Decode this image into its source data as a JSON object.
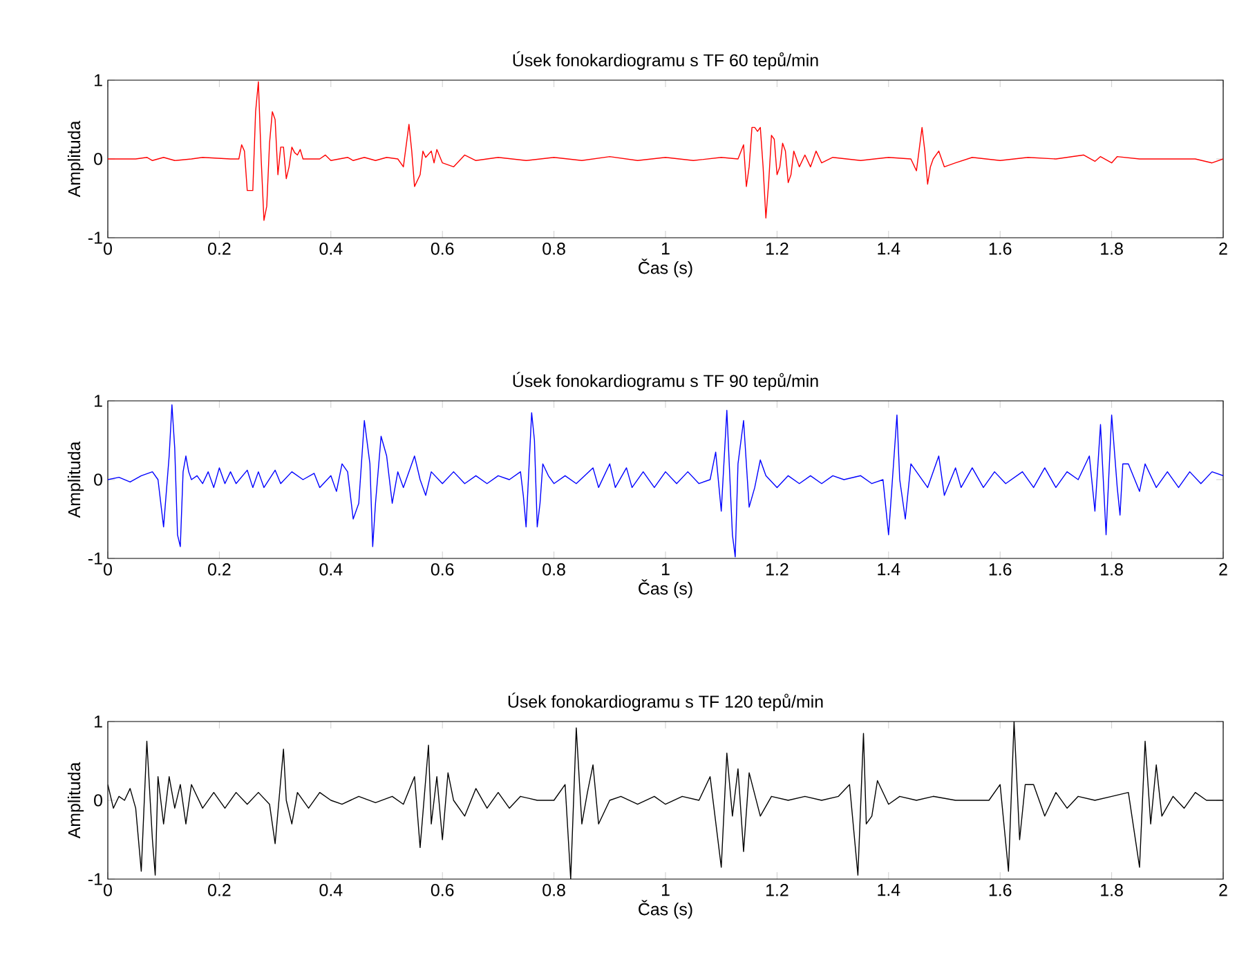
{
  "chart_data": [
    {
      "type": "line",
      "title": "Úsek fonokardiogramu s TF 60 tepů/min",
      "xlabel": "Čas (s)",
      "ylabel": "Amplituda",
      "xlim": [
        0,
        2
      ],
      "ylim": [
        -1,
        1
      ],
      "xticks": [
        0,
        0.2,
        0.4,
        0.6,
        0.8,
        1,
        1.2,
        1.4,
        1.6,
        1.8,
        2
      ],
      "yticks": [
        -1,
        0,
        1
      ],
      "x": [
        0,
        0.05,
        0.07,
        0.08,
        0.1,
        0.12,
        0.15,
        0.17,
        0.22,
        0.235,
        0.24,
        0.245,
        0.25,
        0.26,
        0.265,
        0.27,
        0.275,
        0.28,
        0.285,
        0.29,
        0.295,
        0.3,
        0.305,
        0.31,
        0.315,
        0.32,
        0.325,
        0.33,
        0.335,
        0.34,
        0.345,
        0.35,
        0.38,
        0.39,
        0.4,
        0.43,
        0.44,
        0.46,
        0.48,
        0.5,
        0.52,
        0.53,
        0.54,
        0.545,
        0.55,
        0.56,
        0.565,
        0.57,
        0.58,
        0.585,
        0.59,
        0.6,
        0.62,
        0.64,
        0.66,
        0.7,
        0.75,
        0.8,
        0.85,
        0.9,
        0.95,
        1,
        1.05,
        1.1,
        1.13,
        1.14,
        1.145,
        1.15,
        1.155,
        1.16,
        1.165,
        1.17,
        1.175,
        1.18,
        1.185,
        1.19,
        1.195,
        1.2,
        1.205,
        1.21,
        1.215,
        1.22,
        1.225,
        1.23,
        1.24,
        1.25,
        1.26,
        1.27,
        1.28,
        1.3,
        1.35,
        1.4,
        1.44,
        1.45,
        1.46,
        1.465,
        1.47,
        1.475,
        1.48,
        1.49,
        1.5,
        1.52,
        1.55,
        1.6,
        1.65,
        1.7,
        1.75,
        1.77,
        1.78,
        1.8,
        1.81,
        1.85,
        1.95,
        1.98,
        2
      ],
      "series": [
        {
          "color": "#ff0000",
          "values": [
            0,
            0,
            0.02,
            -0.02,
            0.02,
            -0.02,
            0,
            0.02,
            0,
            0,
            0.18,
            0.1,
            -0.4,
            -0.4,
            0.6,
            0.98,
            0,
            -0.78,
            -0.6,
            0.2,
            0.6,
            0.5,
            -0.2,
            0.15,
            0.15,
            -0.25,
            -0.1,
            0.15,
            0.08,
            0.05,
            0.12,
            0,
            0,
            0.05,
            -0.02,
            0.02,
            -0.02,
            0.02,
            -0.02,
            0.02,
            0,
            -0.1,
            0.44,
            0.1,
            -0.35,
            -0.2,
            0.1,
            0.02,
            0.1,
            -0.05,
            0.12,
            -0.05,
            -0.1,
            0.05,
            -0.02,
            0.02,
            -0.02,
            0.02,
            -0.02,
            0.03,
            -0.02,
            0.02,
            -0.02,
            0.02,
            0,
            0.18,
            -0.35,
            -0.1,
            0.4,
            0.4,
            0.35,
            0.4,
            -0.1,
            -0.75,
            -0.3,
            0.3,
            0.25,
            -0.2,
            -0.1,
            0.2,
            0.1,
            -0.3,
            -0.2,
            0.1,
            -0.1,
            0.05,
            -0.1,
            0.1,
            -0.05,
            0.02,
            -0.02,
            0.02,
            0,
            -0.15,
            0.4,
            0.1,
            -0.32,
            -0.1,
            0,
            0.1,
            -0.1,
            -0.05,
            0.02,
            -0.02,
            0.02,
            0,
            0.05,
            -0.03,
            0.03,
            -0.05,
            0.03,
            0,
            0,
            -0.05,
            0
          ]
        }
      ]
    },
    {
      "type": "line",
      "title": "Úsek fonokardiogramu s TF 90 tepů/min",
      "xlabel": "Čas (s)",
      "ylabel": "Amplituda",
      "xlim": [
        0,
        2
      ],
      "ylim": [
        -1,
        1
      ],
      "xticks": [
        0,
        0.2,
        0.4,
        0.6,
        0.8,
        1,
        1.2,
        1.4,
        1.6,
        1.8,
        2
      ],
      "yticks": [
        -1,
        0,
        1
      ],
      "x": [
        0,
        0.02,
        0.04,
        0.06,
        0.08,
        0.09,
        0.1,
        0.11,
        0.115,
        0.12,
        0.125,
        0.13,
        0.135,
        0.14,
        0.145,
        0.15,
        0.16,
        0.17,
        0.18,
        0.19,
        0.2,
        0.21,
        0.22,
        0.23,
        0.25,
        0.26,
        0.27,
        0.28,
        0.3,
        0.31,
        0.33,
        0.35,
        0.37,
        0.38,
        0.4,
        0.41,
        0.42,
        0.43,
        0.44,
        0.45,
        0.46,
        0.47,
        0.475,
        0.48,
        0.49,
        0.5,
        0.51,
        0.52,
        0.53,
        0.55,
        0.56,
        0.57,
        0.58,
        0.6,
        0.62,
        0.64,
        0.66,
        0.68,
        0.7,
        0.72,
        0.74,
        0.745,
        0.75,
        0.76,
        0.765,
        0.77,
        0.775,
        0.78,
        0.79,
        0.8,
        0.82,
        0.84,
        0.87,
        0.88,
        0.9,
        0.91,
        0.93,
        0.94,
        0.96,
        0.98,
        1,
        1.02,
        1.04,
        1.06,
        1.08,
        1.09,
        1.1,
        1.11,
        1.12,
        1.125,
        1.13,
        1.14,
        1.15,
        1.16,
        1.17,
        1.18,
        1.2,
        1.22,
        1.24,
        1.26,
        1.28,
        1.3,
        1.32,
        1.35,
        1.37,
        1.39,
        1.4,
        1.415,
        1.42,
        1.43,
        1.44,
        1.45,
        1.47,
        1.49,
        1.5,
        1.52,
        1.53,
        1.55,
        1.57,
        1.59,
        1.61,
        1.64,
        1.66,
        1.68,
        1.7,
        1.72,
        1.74,
        1.76,
        1.77,
        1.78,
        1.79,
        1.8,
        1.81,
        1.815,
        1.82,
        1.83,
        1.85,
        1.86,
        1.88,
        1.9,
        1.92,
        1.94,
        1.96,
        1.98,
        2
      ],
      "series": [
        {
          "color": "#0000ff",
          "values": [
            0,
            0.03,
            -0.03,
            0.05,
            0.1,
            0,
            -0.6,
            0.3,
            0.95,
            0.4,
            -0.7,
            -0.85,
            0.1,
            0.3,
            0.1,
            0,
            0.05,
            -0.05,
            0.1,
            -0.1,
            0.15,
            -0.05,
            0.1,
            -0.05,
            0.12,
            -0.1,
            0.1,
            -0.1,
            0.12,
            -0.05,
            0.1,
            0,
            0.08,
            -0.1,
            0.05,
            -0.15,
            0.2,
            0.1,
            -0.5,
            -0.3,
            0.75,
            0.2,
            -0.85,
            -0.3,
            0.55,
            0.3,
            -0.3,
            0.1,
            -0.1,
            0.3,
            0,
            -0.2,
            0.1,
            -0.05,
            0.1,
            -0.05,
            0.05,
            -0.05,
            0.05,
            0,
            0.1,
            -0.2,
            -0.6,
            0.85,
            0.5,
            -0.6,
            -0.3,
            0.2,
            0.05,
            -0.05,
            0.05,
            -0.05,
            0.15,
            -0.1,
            0.2,
            -0.1,
            0.15,
            -0.1,
            0.1,
            -0.1,
            0.1,
            -0.05,
            0.1,
            -0.05,
            0,
            0.35,
            -0.4,
            0.88,
            -0.7,
            -0.98,
            0.2,
            0.75,
            -0.35,
            -0.1,
            0.25,
            0.05,
            -0.1,
            0.05,
            -0.05,
            0.05,
            -0.05,
            0.05,
            0,
            0.05,
            -0.05,
            0,
            -0.7,
            0.82,
            0,
            -0.5,
            0.2,
            0.1,
            -0.1,
            0.3,
            -0.2,
            0.15,
            -0.1,
            0.15,
            -0.1,
            0.1,
            -0.05,
            0.1,
            -0.1,
            0.15,
            -0.1,
            0.1,
            0,
            0.3,
            -0.4,
            0.7,
            -0.7,
            0.82,
            -0.1,
            -0.45,
            0.2,
            0.2,
            -0.15,
            0.2,
            -0.1,
            0.1,
            -0.1,
            0.1,
            -0.05,
            0.1,
            0.05
          ]
        }
      ]
    },
    {
      "type": "line",
      "title": "Úsek fonokardiogramu s TF 120 tepů/min",
      "xlabel": "Čas (s)",
      "ylabel": "Amplituda",
      "xlim": [
        0,
        2
      ],
      "ylim": [
        -1,
        1
      ],
      "xticks": [
        0,
        0.2,
        0.4,
        0.6,
        0.8,
        1,
        1.2,
        1.4,
        1.6,
        1.8,
        2
      ],
      "yticks": [
        -1,
        0,
        1
      ],
      "x": [
        0,
        0.01,
        0.02,
        0.03,
        0.04,
        0.05,
        0.06,
        0.07,
        0.08,
        0.085,
        0.09,
        0.1,
        0.11,
        0.12,
        0.13,
        0.14,
        0.15,
        0.17,
        0.19,
        0.21,
        0.23,
        0.25,
        0.27,
        0.29,
        0.3,
        0.315,
        0.32,
        0.33,
        0.34,
        0.36,
        0.38,
        0.4,
        0.42,
        0.45,
        0.48,
        0.51,
        0.53,
        0.55,
        0.56,
        0.575,
        0.58,
        0.59,
        0.6,
        0.61,
        0.62,
        0.64,
        0.66,
        0.68,
        0.7,
        0.72,
        0.74,
        0.77,
        0.8,
        0.82,
        0.83,
        0.84,
        0.85,
        0.86,
        0.87,
        0.88,
        0.9,
        0.92,
        0.95,
        0.98,
        1,
        1.03,
        1.06,
        1.08,
        1.1,
        1.11,
        1.12,
        1.13,
        1.14,
        1.15,
        1.17,
        1.19,
        1.22,
        1.25,
        1.28,
        1.31,
        1.33,
        1.345,
        1.355,
        1.36,
        1.37,
        1.38,
        1.4,
        1.42,
        1.45,
        1.48,
        1.52,
        1.58,
        1.6,
        1.615,
        1.625,
        1.635,
        1.645,
        1.66,
        1.68,
        1.7,
        1.72,
        1.74,
        1.77,
        1.8,
        1.83,
        1.85,
        1.86,
        1.87,
        1.88,
        1.89,
        1.91,
        1.93,
        1.95,
        1.97,
        2
      ],
      "series": [
        {
          "color": "#000000",
          "values": [
            0.2,
            -0.1,
            0.05,
            0,
            0.15,
            -0.1,
            -0.9,
            0.75,
            -0.5,
            -0.95,
            0.3,
            -0.3,
            0.3,
            -0.1,
            0.2,
            -0.3,
            0.2,
            -0.1,
            0.1,
            -0.1,
            0.1,
            -0.05,
            0.1,
            -0.05,
            -0.55,
            0.65,
            0,
            -0.3,
            0.1,
            -0.1,
            0.1,
            0,
            -0.05,
            0.05,
            -0.03,
            0.05,
            -0.05,
            0.3,
            -0.6,
            0.7,
            -0.3,
            0.3,
            -0.5,
            0.35,
            0,
            -0.2,
            0.15,
            -0.1,
            0.1,
            -0.1,
            0.05,
            0,
            0,
            0.2,
            -1,
            0.92,
            -0.3,
            0.1,
            0.45,
            -0.3,
            0,
            0.05,
            -0.05,
            0.05,
            -0.05,
            0.05,
            0,
            0.3,
            -0.85,
            0.6,
            -0.2,
            0.4,
            -0.65,
            0.35,
            -0.2,
            0.05,
            0,
            0.05,
            0,
            0.05,
            0.2,
            -0.95,
            0.85,
            -0.3,
            -0.2,
            0.25,
            -0.05,
            0.05,
            0,
            0.05,
            0,
            0,
            0.2,
            -0.9,
            1,
            -0.5,
            0.2,
            0.2,
            -0.2,
            0.1,
            -0.1,
            0.05,
            0,
            0.05,
            0.1,
            -0.85,
            0.75,
            -0.3,
            0.45,
            -0.2,
            0.05,
            -0.1,
            0.1,
            0,
            0
          ]
        }
      ]
    }
  ]
}
